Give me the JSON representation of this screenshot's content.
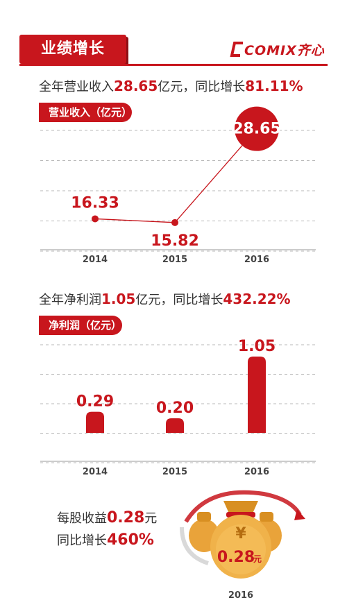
{
  "header": {
    "title": "业绩增长",
    "logo_text": "COMIX齐心",
    "accent": "#c8161d"
  },
  "revenue": {
    "summary_prefix": "全年营业收入",
    "summary_value": "28.65",
    "summary_mid": "亿元，同比增长",
    "summary_growth": "81.11%",
    "label": "营业收入（亿元）"
  },
  "profit": {
    "summary_prefix": "全年净利润",
    "summary_value": "1.05",
    "summary_mid": "亿元，同比增长",
    "summary_growth": "432.22%",
    "label": "净利润（亿元）"
  },
  "eps": {
    "line1_prefix": "每股收益",
    "line1_value": "0.28",
    "line1_suffix": "元",
    "line2_prefix": "同比增长",
    "line2_value": "460%",
    "bag_value": "0.28",
    "bag_unit": "元",
    "bag_currency": "¥",
    "year": "2016"
  },
  "chart_data": [
    {
      "type": "line",
      "title": "营业收入（亿元）",
      "categories": [
        "2014",
        "2015",
        "2016"
      ],
      "series": [
        {
          "values": [
            16.33,
            15.82,
            28.65
          ]
        }
      ],
      "data_labels": [
        "16.33",
        "15.82",
        "28.65"
      ],
      "grid": true,
      "color": "#c8161d"
    },
    {
      "type": "bar",
      "title": "净利润（亿元）",
      "categories": [
        "2014",
        "2015",
        "2016"
      ],
      "series": [
        {
          "values": [
            0.29,
            0.2,
            1.05
          ]
        }
      ],
      "data_labels": [
        "0.29",
        "0.20",
        "1.05"
      ],
      "grid": true,
      "color": "#c8161d"
    }
  ]
}
